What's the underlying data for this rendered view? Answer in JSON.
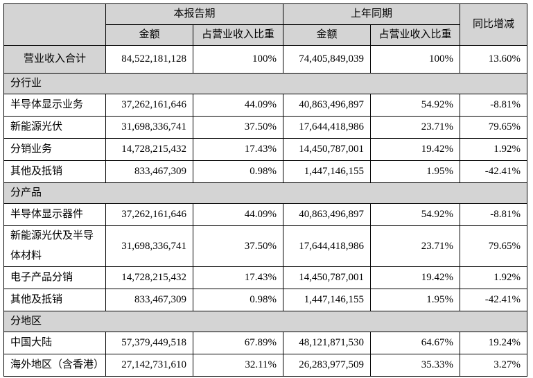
{
  "table": {
    "title": "revenue-breakdown-table",
    "header": {
      "corner": "",
      "current_period": "本报告期",
      "prior_period": "上年同期",
      "yoy": "同比增减",
      "amount": "金额",
      "pct_of_revenue": "占营业收入比重"
    },
    "colors": {
      "header_bg": "#d4d4d4",
      "border": "#000000",
      "text": "#000000",
      "cell_bg": "#ffffff"
    },
    "rows": [
      {
        "type": "total",
        "label": "营业收入合计",
        "amount1": "84,522,181,128",
        "pct1": "100%",
        "amount2": "74,405,849,039",
        "pct2": "100%",
        "yoy": "13.60%"
      },
      {
        "type": "section",
        "label": "分行业"
      },
      {
        "type": "data",
        "label": "半导体显示业务",
        "amount1": "37,262,161,646",
        "pct1": "44.09%",
        "amount2": "40,863,496,897",
        "pct2": "54.92%",
        "yoy": "-8.81%"
      },
      {
        "type": "data",
        "label": "新能源光伏",
        "amount1": "31,698,336,741",
        "pct1": "37.50%",
        "amount2": "17,644,418,986",
        "pct2": "23.71%",
        "yoy": "79.65%"
      },
      {
        "type": "data",
        "label": "分销业务",
        "amount1": "14,728,215,432",
        "pct1": "17.43%",
        "amount2": "14,450,787,001",
        "pct2": "19.42%",
        "yoy": "1.92%"
      },
      {
        "type": "data",
        "label": "其他及抵销",
        "amount1": "833,467,309",
        "pct1": "0.98%",
        "amount2": "1,447,146,155",
        "pct2": "1.95%",
        "yoy": "-42.41%"
      },
      {
        "type": "section",
        "label": "分产品"
      },
      {
        "type": "data",
        "label": "半导体显示器件",
        "amount1": "37,262,161,646",
        "pct1": "44.09%",
        "amount2": "40,863,496,897",
        "pct2": "54.92%",
        "yoy": "-8.81%"
      },
      {
        "type": "data",
        "label": "新能源光伏及半导体材料",
        "amount1": "31,698,336,741",
        "pct1": "37.50%",
        "amount2": "17,644,418,986",
        "pct2": "23.71%",
        "yoy": "79.65%"
      },
      {
        "type": "data",
        "label": "电子产品分销",
        "amount1": "14,728,215,432",
        "pct1": "17.43%",
        "amount2": "14,450,787,001",
        "pct2": "19.42%",
        "yoy": "1.92%"
      },
      {
        "type": "data",
        "label": "其他及抵销",
        "amount1": "833,467,309",
        "pct1": "0.98%",
        "amount2": "1,447,146,155",
        "pct2": "1.95%",
        "yoy": "-42.41%"
      },
      {
        "type": "section",
        "label": "分地区"
      },
      {
        "type": "data",
        "label": "中国大陆",
        "amount1": "57,379,449,518",
        "pct1": "67.89%",
        "amount2": "48,121,871,530",
        "pct2": "64.67%",
        "yoy": "19.24%"
      },
      {
        "type": "data",
        "label": "海外地区（含香港）",
        "amount1": "27,142,731,610",
        "pct1": "32.11%",
        "amount2": "26,283,977,509",
        "pct2": "35.33%",
        "yoy": "3.27%"
      }
    ]
  }
}
